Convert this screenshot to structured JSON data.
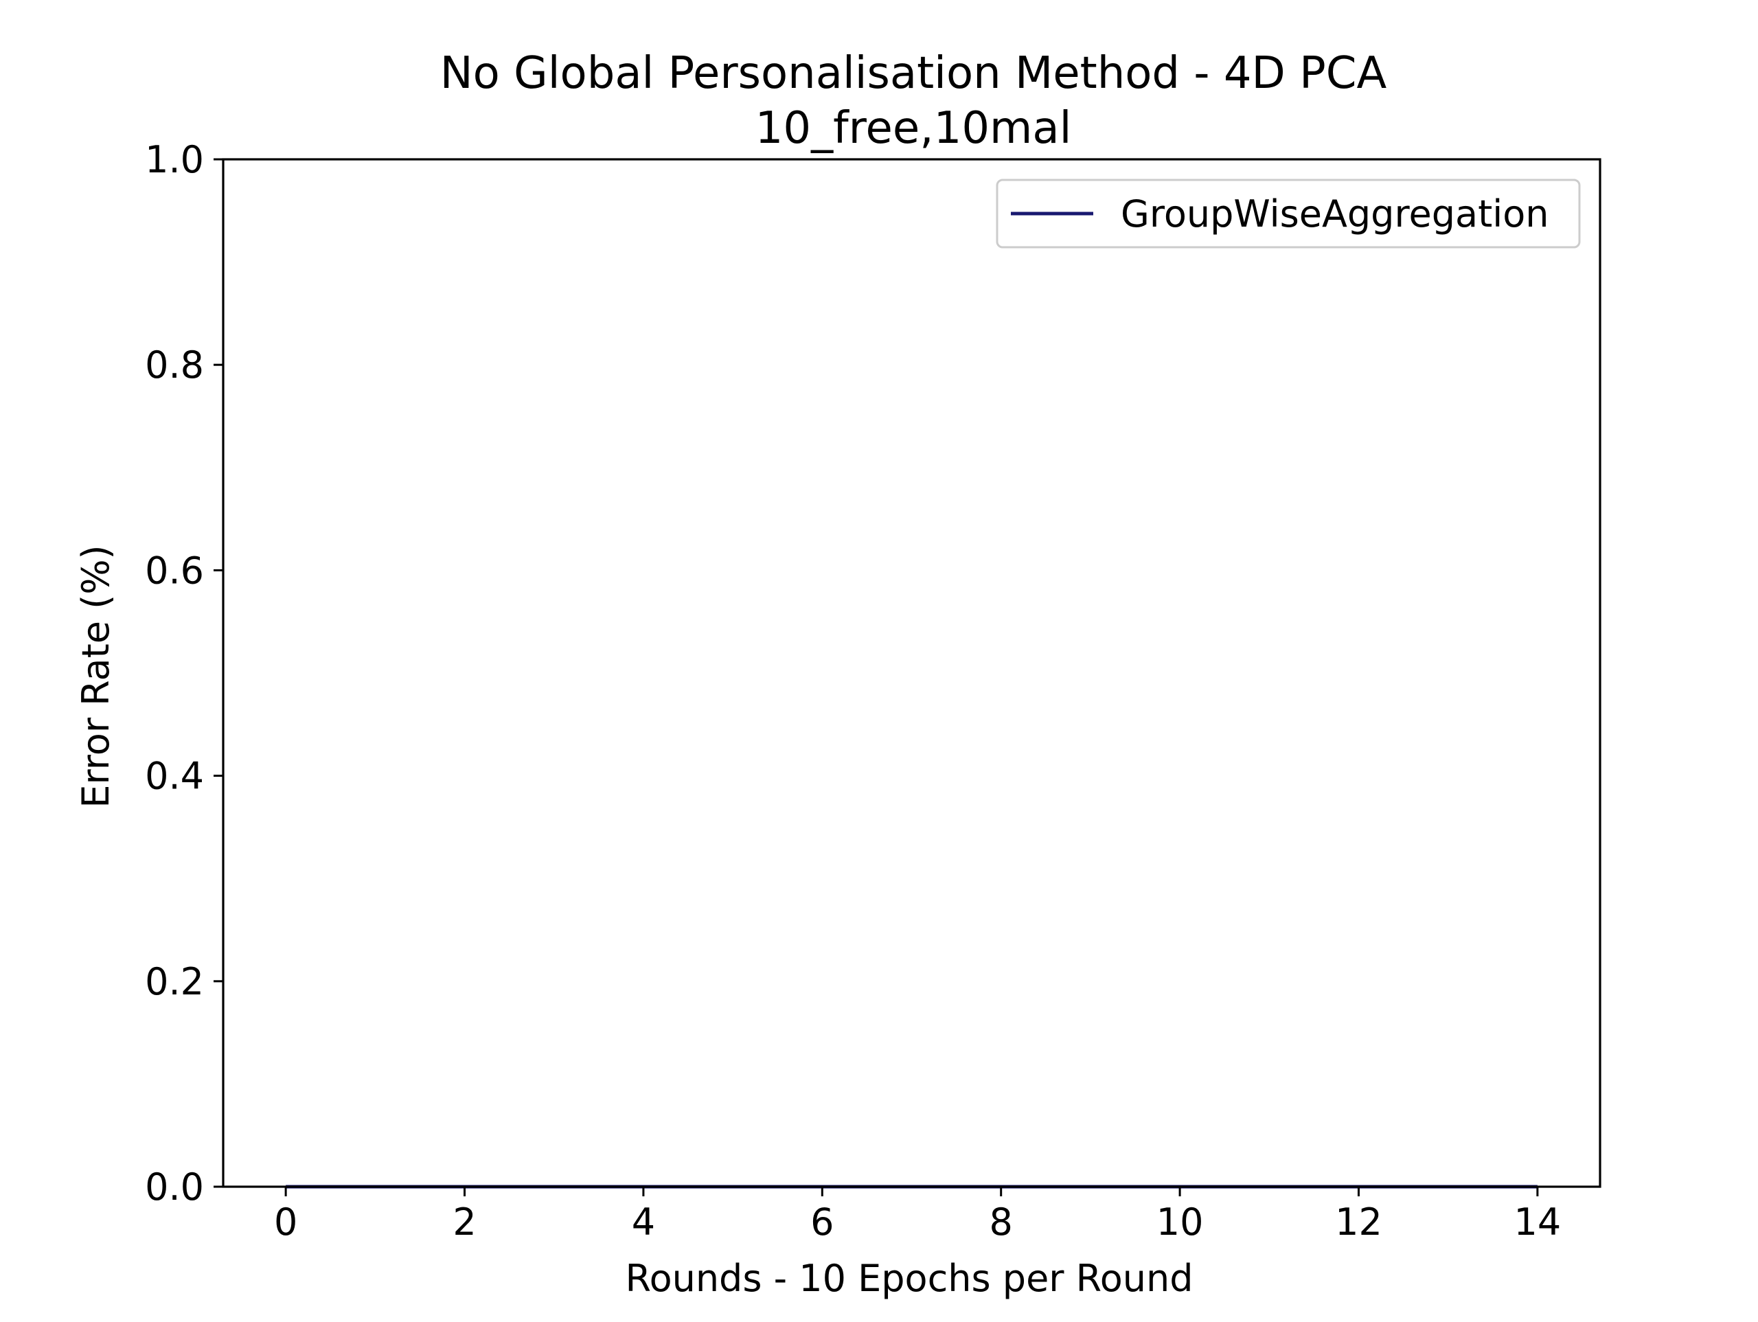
{
  "chart_data": {
    "type": "line",
    "title": "No Global Personalisation Method - 4D PCA",
    "subtitle": "10_free,10mal",
    "xlabel": "Rounds - 10 Epochs per Round",
    "ylabel": "Error Rate (%)",
    "xlim": [
      -0.7,
      14.7
    ],
    "ylim": [
      0,
      1
    ],
    "xticks": [
      0,
      2,
      4,
      6,
      8,
      10,
      12,
      14
    ],
    "yticks": [
      0.0,
      0.2,
      0.4,
      0.6,
      0.8,
      1.0
    ],
    "xtick_labels": [
      "0",
      "2",
      "4",
      "6",
      "8",
      "10",
      "12",
      "14"
    ],
    "ytick_labels": [
      "0.0",
      "0.2",
      "0.4",
      "0.6",
      "0.8",
      "1.0"
    ],
    "grid": false,
    "legend_position": "top-right",
    "series": [
      {
        "name": "GroupWiseAggregation",
        "color": "#191970",
        "x": [
          0,
          1,
          2,
          3,
          4,
          5,
          6,
          7,
          8,
          9,
          10,
          11,
          12,
          13,
          14
        ],
        "y": [
          0,
          0,
          0,
          0,
          0,
          0,
          0,
          0,
          0,
          0,
          0,
          0,
          0,
          0,
          0
        ]
      }
    ]
  }
}
